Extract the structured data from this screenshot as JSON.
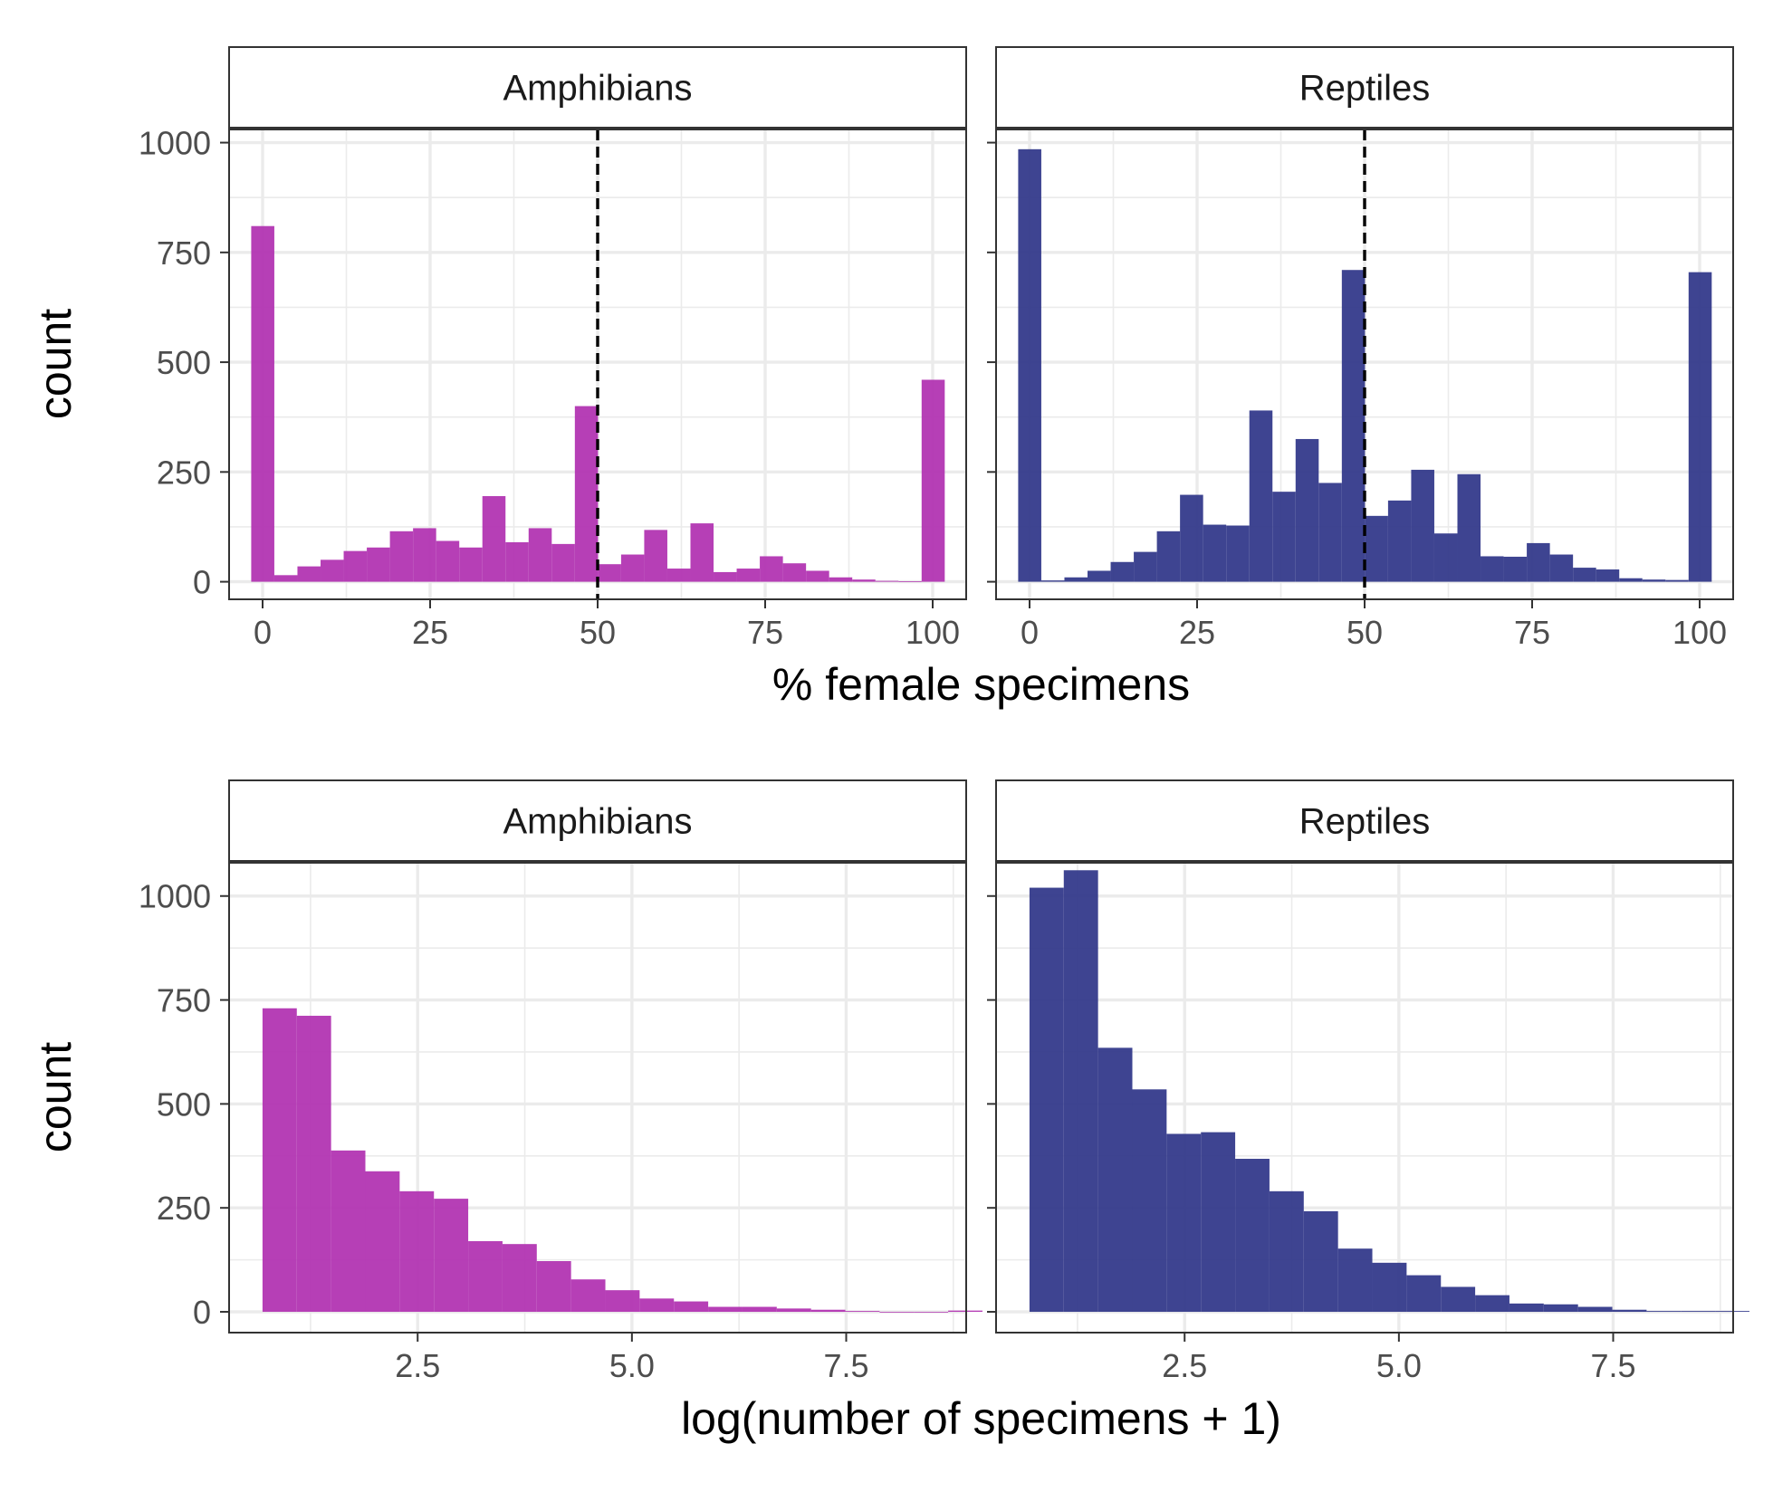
{
  "colors": {
    "amphibians": "#b02fb0",
    "reptiles": "#2e3488",
    "reference_line": "#000000",
    "grid": "#ebebeb",
    "strip_fill": "#ffffff",
    "panel_border": "#333333"
  },
  "chart_data": [
    {
      "type": "histogram",
      "facets": [
        "Amphibians",
        "Reptiles"
      ],
      "xlabel": "% female specimens",
      "ylabel": "count",
      "xlim": [
        -5,
        105
      ],
      "ylim": [
        -40,
        1030
      ],
      "x_ticks": [
        0,
        25,
        50,
        75,
        100
      ],
      "x_tick_labels": [
        "0",
        "25",
        "50",
        "75",
        "100"
      ],
      "y_ticks": [
        0,
        250,
        500,
        750,
        1000
      ],
      "y_tick_labels": [
        "0",
        "250",
        "500",
        "750",
        "1000"
      ],
      "reference_line": {
        "x": 50,
        "style": "dashed"
      },
      "bin_width": 3.45,
      "bin_start": -1.7,
      "series": [
        {
          "panel": "Amphibians",
          "values": [
            810,
            15,
            35,
            50,
            70,
            78,
            115,
            122,
            93,
            78,
            195,
            90,
            122,
            86,
            400,
            40,
            62,
            118,
            30,
            133,
            22,
            30,
            58,
            42,
            25,
            10,
            5,
            2,
            1,
            460
          ]
        },
        {
          "panel": "Reptiles",
          "values": [
            985,
            3,
            10,
            25,
            45,
            68,
            115,
            198,
            130,
            128,
            390,
            205,
            325,
            225,
            710,
            150,
            185,
            255,
            110,
            245,
            58,
            57,
            88,
            62,
            32,
            28,
            8,
            5,
            4,
            705
          ]
        }
      ]
    },
    {
      "type": "histogram",
      "facets": [
        "Amphibians",
        "Reptiles"
      ],
      "xlabel": "log(number of specimens + 1)",
      "ylabel": "count",
      "xlim": [
        0.3,
        8.9
      ],
      "ylim": [
        -50,
        1080
      ],
      "x_ticks": [
        2.5,
        5.0,
        7.5
      ],
      "x_tick_labels": [
        "2.5",
        "5.0",
        "7.5"
      ],
      "y_ticks": [
        0,
        250,
        500,
        750,
        1000
      ],
      "y_tick_labels": [
        "0",
        "250",
        "500",
        "750",
        "1000"
      ],
      "bin_width": 0.4,
      "bin_start": 0.69,
      "series": [
        {
          "panel": "Amphibians",
          "values": [
            730,
            712,
            388,
            338,
            290,
            272,
            170,
            163,
            122,
            78,
            52,
            32,
            25,
            12,
            12,
            8,
            5,
            2,
            0,
            0,
            3
          ]
        },
        {
          "panel": "Reptiles",
          "values": [
            1020,
            1062,
            635,
            535,
            428,
            432,
            368,
            290,
            242,
            152,
            118,
            88,
            60,
            40,
            20,
            18,
            12,
            5,
            2,
            2,
            2
          ]
        }
      ]
    }
  ]
}
